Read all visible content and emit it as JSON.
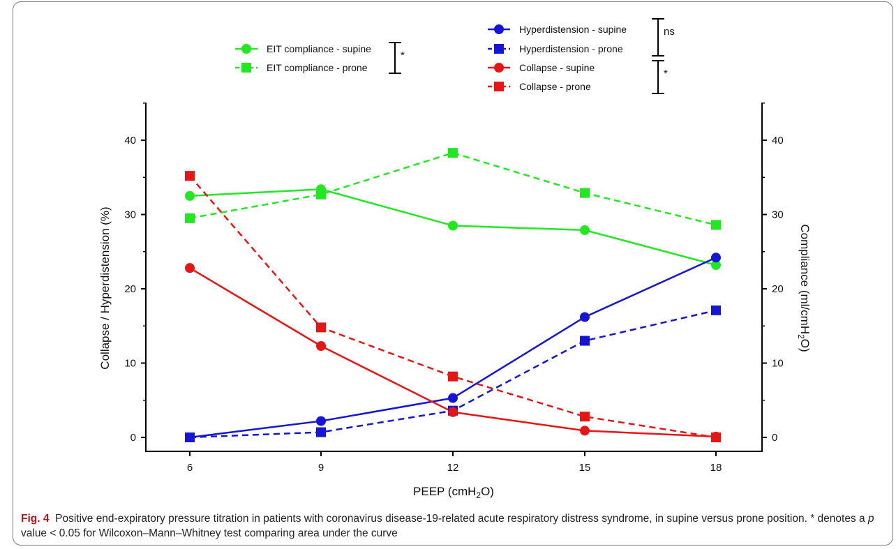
{
  "chart_data": {
    "type": "line",
    "x": [
      6,
      9,
      12,
      15,
      18
    ],
    "xlabel": "PEEP (cmH2O)",
    "ylabel_left": "Collapse / Hyperdistension (%)",
    "ylabel_right": "Compliance (ml/cmH2O)",
    "ylim": [
      0,
      45
    ],
    "yticks": [
      0,
      10,
      20,
      30,
      40
    ],
    "series": [
      {
        "name": "EIT compliance - supine",
        "axis": "right",
        "color": "#22e822",
        "dash": false,
        "marker": "circle",
        "values": [
          32.5,
          33.4,
          28.5,
          27.9,
          23.2
        ]
      },
      {
        "name": "EIT compliance - prone",
        "axis": "right",
        "color": "#22e822",
        "dash": true,
        "marker": "square",
        "values": [
          29.5,
          32.7,
          38.3,
          32.9,
          28.6
        ]
      },
      {
        "name": "Hyperdistension - supine",
        "axis": "left",
        "color": "#1515d6",
        "dash": false,
        "marker": "circle",
        "values": [
          0,
          2.2,
          5.3,
          16.2,
          24.2
        ]
      },
      {
        "name": "Hyperdistension - prone",
        "axis": "left",
        "color": "#1515d6",
        "dash": true,
        "marker": "square",
        "values": [
          0,
          0.7,
          3.6,
          13.0,
          17.1
        ]
      },
      {
        "name": "Collapse - supine",
        "axis": "left",
        "color": "#e81515",
        "dash": false,
        "marker": "circle",
        "values": [
          22.8,
          12.3,
          3.4,
          0.9,
          0.1
        ]
      },
      {
        "name": "Collapse - prone",
        "axis": "left",
        "color": "#e81515",
        "dash": true,
        "marker": "square",
        "values": [
          35.2,
          14.8,
          8.2,
          2.8,
          0
        ]
      }
    ],
    "annotations": [
      {
        "text": "*",
        "group": "compliance"
      },
      {
        "text": "ns",
        "group": "hyperdistension"
      },
      {
        "text": "*",
        "group": "collapse"
      }
    ]
  },
  "caption": {
    "label": "Fig. 4",
    "text": "Positive end-expiratory pressure titration in patients with coronavirus disease-19-related acute respiratory distress syndrome, in supine versus prone position. * denotes a ",
    "p_symbol": "p",
    "text_after": " value < 0.05 for Wilcoxon–Mann–Whitney test comparing area under the curve"
  }
}
